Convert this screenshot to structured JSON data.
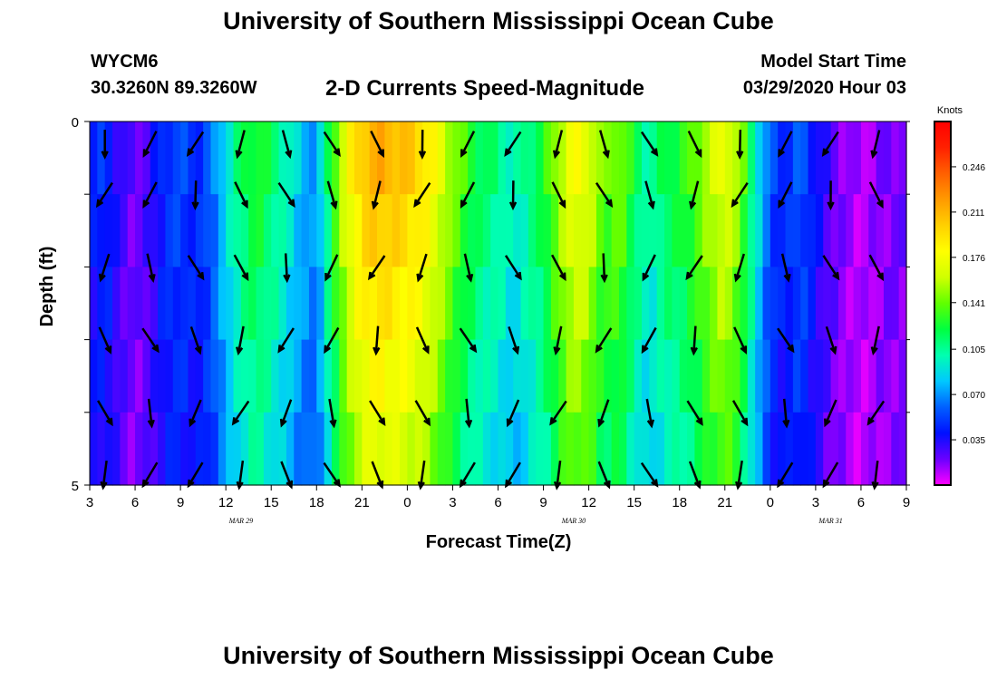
{
  "header": {
    "title": "University of Southern Mississippi Ocean Cube",
    "station": "WYCM6",
    "coords": "30.3260N 89.3260W",
    "subtitle": "2-D Currents Speed-Magnitude",
    "model_start_label": "Model Start Time",
    "model_start_value": "03/29/2020 Hour 03"
  },
  "footer": {
    "title": "University of Southern Mississippi Ocean Cube"
  },
  "chart_data": {
    "type": "heatmap",
    "xlabel": "Forecast Time(Z)",
    "ylabel": "Depth (ft)",
    "x_tick_labels": [
      "3",
      "6",
      "9",
      "12",
      "15",
      "18",
      "21",
      "0",
      "3",
      "6",
      "9",
      "12",
      "15",
      "18",
      "21",
      "0",
      "3",
      "6",
      "9"
    ],
    "x_hours": [
      0,
      54
    ],
    "date_labels": [
      {
        "text": "MAR  29",
        "hour": 10
      },
      {
        "text": "MAR  30",
        "hour": 32
      },
      {
        "text": "MAR  31",
        "hour": 49
      }
    ],
    "y_tick_labels": [
      "0",
      "5"
    ],
    "ylim": [
      0,
      5
    ],
    "y_ticks": [
      0,
      1,
      2,
      3,
      4,
      5
    ],
    "colorbar": {
      "unit": "Knots",
      "ticks": [
        "0.246",
        "0.211",
        "0.176",
        "0.141",
        "0.105",
        "0.070",
        "0.035"
      ],
      "tick_values": [
        0.246,
        0.211,
        0.176,
        0.141,
        0.105,
        0.07,
        0.035
      ],
      "range": [
        0.0,
        0.281
      ],
      "colors": [
        "#ff00ff",
        "#6a00ff",
        "#0010ff",
        "#0060ff",
        "#00c8ff",
        "#00ffb0",
        "#00ff40",
        "#60ff00",
        "#d0ff00",
        "#ffff00",
        "#ffd000",
        "#ff9a00",
        "#ff6000",
        "#ff2000",
        "#ff0000"
      ]
    },
    "speed_profile_hours": [
      [
        0,
        0.04
      ],
      [
        1,
        0.05
      ],
      [
        2,
        0.03
      ],
      [
        3,
        0.02
      ],
      [
        4,
        0.03
      ],
      [
        5,
        0.05
      ],
      [
        6,
        0.055
      ],
      [
        7,
        0.045
      ],
      [
        8,
        0.06
      ],
      [
        9,
        0.09
      ],
      [
        10,
        0.115
      ],
      [
        11,
        0.13
      ],
      [
        12,
        0.115
      ],
      [
        13,
        0.1
      ],
      [
        14,
        0.08
      ],
      [
        15,
        0.07
      ],
      [
        16,
        0.13
      ],
      [
        17,
        0.175
      ],
      [
        18,
        0.205
      ],
      [
        19,
        0.215
      ],
      [
        20,
        0.21
      ],
      [
        21,
        0.205
      ],
      [
        22,
        0.195
      ],
      [
        23,
        0.175
      ],
      [
        24,
        0.15
      ],
      [
        25,
        0.13
      ],
      [
        26,
        0.115
      ],
      [
        27,
        0.11
      ],
      [
        28,
        0.095
      ],
      [
        29,
        0.11
      ],
      [
        30,
        0.125
      ],
      [
        31,
        0.155
      ],
      [
        32,
        0.18
      ],
      [
        33,
        0.17
      ],
      [
        34,
        0.14
      ],
      [
        35,
        0.15
      ],
      [
        36,
        0.12
      ],
      [
        37,
        0.1
      ],
      [
        38,
        0.12
      ],
      [
        39,
        0.125
      ],
      [
        40,
        0.14
      ],
      [
        41,
        0.16
      ],
      [
        42,
        0.175
      ],
      [
        43,
        0.15
      ],
      [
        44,
        0.1
      ],
      [
        45,
        0.055
      ],
      [
        46,
        0.045
      ],
      [
        47,
        0.06
      ],
      [
        48,
        0.04
      ],
      [
        49,
        0.025
      ],
      [
        50,
        0.015
      ],
      [
        51,
        0.01
      ],
      [
        52,
        0.015
      ],
      [
        53,
        0.02
      ],
      [
        54,
        0.02
      ]
    ]
  }
}
